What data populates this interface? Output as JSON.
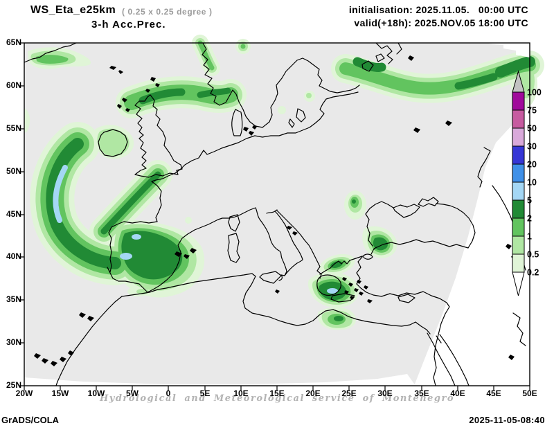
{
  "header": {
    "model": "WS_Eta_e25km",
    "resolution": "( 0.25 x 0.25 degree )",
    "product": "3-h Acc.Prec.",
    "initialisation": "initialisation: 2025.11.05.   00:00 UTC",
    "valid": "valid(+18h): 2025.NOV.05 18:00 UTC"
  },
  "axes": {
    "lat": [
      "65N",
      "60N",
      "55N",
      "50N",
      "45N",
      "40N",
      "35N",
      "30N",
      "25N"
    ],
    "lon": [
      "20W",
      "15W",
      "10W",
      "5W",
      "0",
      "5E",
      "10E",
      "15E",
      "20E",
      "25E",
      "30E",
      "35E",
      "40E",
      "45E",
      "50E"
    ]
  },
  "colorbar": {
    "tick_labels": [
      "100",
      "75",
      "50",
      "30",
      "20",
      "10",
      "5",
      "2",
      "1",
      "0.5",
      "0.2"
    ],
    "segments_top_to_bottom": [
      "p75",
      "p50",
      "p30",
      "p20",
      "p10",
      "p5",
      "p2",
      "p1",
      "p05",
      "p02"
    ]
  },
  "palette": {
    "p02": "#e0f5d7",
    "p05": "#b0e7a3",
    "p1": "#62c45f",
    "p2": "#218a35",
    "p5": "#a4d7f5",
    "p10": "#4090e8",
    "p20": "#3636d6",
    "p30": "#d9a9da",
    "p50": "#c75ba0",
    "p75": "#a00a9b",
    "over": "#c2c2c2",
    "under": "#ffffff",
    "domain": "#e9e9e9",
    "outside": "#ffffff",
    "coast": "#000000",
    "frame": "#000000"
  },
  "footer": {
    "attribution": "Hydrological and Meteorological service of Montenegro",
    "tool": "GrADS/COLA",
    "generated": "2025-11-05-08:40"
  }
}
